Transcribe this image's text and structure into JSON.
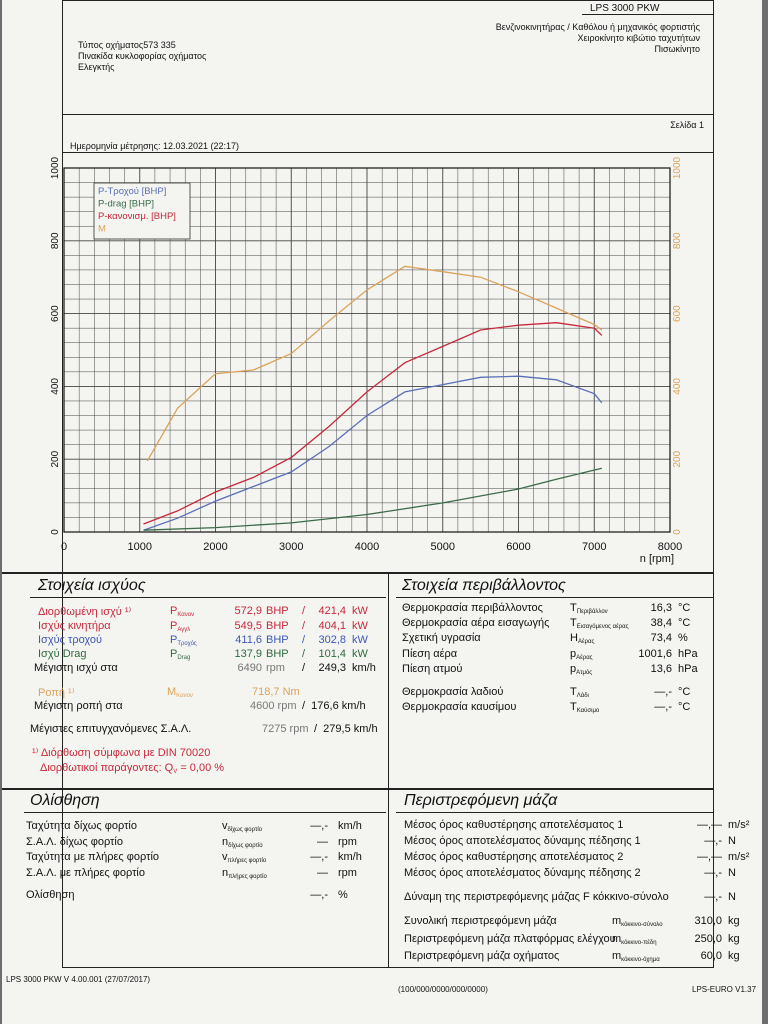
{
  "header": {
    "brand": "LPS 3000 PKW",
    "vehicle_type": "Τύπος οχήματος573 335",
    "plate": "Πινακίδα κυκλοφορίας οχήματος",
    "inspector": "Ελεγκτής",
    "fuel_line": "Βενζινοκινητήρας / Καθόλου ή μηχανικός φορτιστής",
    "gearbox_line": "Χειροκίνητο κιβώτιο ταχυτήτων",
    "drive_line": "Πισωκίνητο",
    "page": "Σελίδα 1",
    "measure_date": "Ημερομηνία μέτρησης: 12.03.2021 (22:17)"
  },
  "chart_data": {
    "type": "line",
    "xlabel": "n [rpm]",
    "xlim": [
      0,
      8000
    ],
    "ylim_left": [
      0,
      1000
    ],
    "ylim_right": [
      0,
      1000
    ],
    "x_ticks": [
      "0",
      "1000",
      "2000",
      "3000",
      "4000",
      "5000",
      "6000",
      "7000",
      "8000"
    ],
    "y_ticks_left": [
      "0",
      "200",
      "400",
      "600",
      "800",
      "1000"
    ],
    "y_ticks_right": [
      "0",
      "200",
      "400",
      "600",
      "800",
      "1000"
    ],
    "grid": true,
    "legend_position": "top-left",
    "series": [
      {
        "name": "P-Τροχού [BHP]",
        "color": "#5b6fb8",
        "points": [
          [
            1050,
            5
          ],
          [
            1500,
            38
          ],
          [
            2000,
            85
          ],
          [
            2500,
            125
          ],
          [
            3000,
            165
          ],
          [
            3500,
            235
          ],
          [
            4000,
            320
          ],
          [
            4500,
            385
          ],
          [
            5000,
            405
          ],
          [
            5500,
            425
          ],
          [
            6000,
            428
          ],
          [
            6500,
            418
          ],
          [
            7000,
            380
          ],
          [
            7100,
            355
          ]
        ]
      },
      {
        "name": "P-drag [BHP]",
        "color": "#3b6b48",
        "points": [
          [
            1050,
            5
          ],
          [
            2000,
            12
          ],
          [
            3000,
            25
          ],
          [
            4000,
            48
          ],
          [
            5000,
            80
          ],
          [
            6000,
            118
          ],
          [
            6500,
            145
          ],
          [
            7100,
            175
          ]
        ]
      },
      {
        "name": "P-κανονισμ. [BHP]",
        "color": "#c8283c",
        "points": [
          [
            1050,
            22
          ],
          [
            1500,
            58
          ],
          [
            2000,
            110
          ],
          [
            2500,
            150
          ],
          [
            3000,
            205
          ],
          [
            3500,
            290
          ],
          [
            4000,
            385
          ],
          [
            4500,
            465
          ],
          [
            5000,
            510
          ],
          [
            5500,
            555
          ],
          [
            6000,
            568
          ],
          [
            6500,
            575
          ],
          [
            7000,
            560
          ],
          [
            7100,
            540
          ]
        ]
      },
      {
        "name": "M",
        "color": "#dba35a",
        "points": [
          [
            1100,
            195
          ],
          [
            1500,
            340
          ],
          [
            2000,
            435
          ],
          [
            2500,
            445
          ],
          [
            3000,
            490
          ],
          [
            3500,
            580
          ],
          [
            4000,
            665
          ],
          [
            4500,
            730
          ],
          [
            5000,
            715
          ],
          [
            5500,
            700
          ],
          [
            6000,
            660
          ],
          [
            6500,
            615
          ],
          [
            7000,
            570
          ],
          [
            7100,
            555
          ]
        ]
      }
    ]
  },
  "power": {
    "title": "Στοιχεία ισχύος",
    "rows": [
      {
        "label": "Διορθωμένη ισχύ ¹⁾",
        "sym": "P",
        "sub": "Κανον",
        "v1": "572,9",
        "u1": "BHP",
        "v2": "421,4",
        "u2": "kW",
        "cls": "red"
      },
      {
        "label": "Ισχύς κινητήρα",
        "sym": "P",
        "sub": "Αγγλ",
        "v1": "549,5",
        "u1": "BHP",
        "v2": "404,1",
        "u2": "kW",
        "cls": "red"
      },
      {
        "label": "Ισχύς τροχού",
        "sym": "P",
        "sub": "Τροχός",
        "v1": "411,6",
        "u1": "BHP",
        "v2": "302,8",
        "u2": "kW",
        "cls": "blue"
      },
      {
        "label": "Ισχύ Drag",
        "sym": "P",
        "sub": "Drag",
        "v1": "137,9",
        "u1": "BHP",
        "v2": "101,4",
        "u2": "kW",
        "cls": "green"
      },
      {
        "label": "Μέγιστη ισχύ στα",
        "sym": "",
        "sub": "",
        "v1": "6490",
        "u1": "rpm",
        "v2": "249,3",
        "u2": "km/h",
        "cls": ""
      }
    ],
    "torque_label": "Ροπή ¹⁾",
    "torque_sym": "M",
    "torque_sub": "Κανον",
    "torque_value": "718,7",
    "torque_unit": "Nm",
    "max_torque_label": "Μέγιστη ροπή στα",
    "max_torque_rpm": "4600",
    "max_torque_rpm_unit": "rpm",
    "max_torque_speed": "176,6",
    "max_torque_speed_unit": "km/h",
    "max_rpm_label": "Μέγιστες επιτυγχανόμενες Σ.Α.Λ.",
    "max_rpm": "7275",
    "max_rpm_unit": "rpm",
    "max_rpm_speed": "279,5",
    "max_rpm_speed_unit": "km/h",
    "din_note": "¹⁾ Διόρθωση σύμφωνα με DIN 70020",
    "factor_label": "Διορθωτικοί παράγοντες: Q",
    "factor_sub": "V",
    "factor_value": " =   0,00 %"
  },
  "environment": {
    "title": "Στοιχεία περιβάλλοντος",
    "rows": [
      {
        "label": "Θερμοκρασία περιβάλλοντος",
        "sym": "T",
        "sub": "Περιβάλλον",
        "value": "16,3",
        "unit": "°C"
      },
      {
        "label": "Θερμοκρασία αέρα εισαγωγής",
        "sym": "T",
        "sub": "Εισαγόμενος αέρας",
        "value": "38,4",
        "unit": "°C"
      },
      {
        "label": "Σχετική υγρασία",
        "sym": "H",
        "sub": "Αέρας",
        "value": "73,4",
        "unit": "%"
      },
      {
        "label": "Πίεση αέρα",
        "sym": "p",
        "sub": "Αέρας",
        "value": "1001,6",
        "unit": "hPa"
      },
      {
        "label": "Πίεση ατμού",
        "sym": "p",
        "sub": "Ατμός",
        "value": "13,6",
        "unit": "hPa"
      },
      {
        "label": "Θερμοκρασία λαδιού",
        "sym": "T",
        "sub": "Λάδι",
        "value": "—,-",
        "unit": "°C"
      },
      {
        "label": "Θερμοκρασία καυσίμου",
        "sym": "T",
        "sub": "Καύσιμο",
        "value": "—,-",
        "unit": "°C"
      }
    ]
  },
  "slip": {
    "title": "Ολίσθηση",
    "rows": [
      {
        "label": "Ταχύτητα δίχως φορτίο",
        "sym": "v",
        "sub": "δίχως φορτίο",
        "value": "—,-",
        "unit": "km/h"
      },
      {
        "label": "Σ.Α.Λ. δίχως φορτίο",
        "sym": "n",
        "sub": "δίχως φορτίο",
        "value": "—",
        "unit": "rpm"
      },
      {
        "label": "Ταχύτητα με πλήρες φορτίο",
        "sym": "v",
        "sub": "πλήρες φορτίο",
        "value": "—,-",
        "unit": "km/h"
      },
      {
        "label": "Σ.Α.Λ. με πλήρες φορτίο",
        "sym": "n",
        "sub": "πλήρες φορτίο",
        "value": "—",
        "unit": "rpm"
      },
      {
        "label": "Ολίσθηση",
        "sym": "",
        "sub": "",
        "value": "—,-",
        "unit": "%"
      }
    ]
  },
  "mass": {
    "title": "Περιστρεφόμενη μάζα",
    "rows": [
      {
        "label": "Μέσος όρος καθυστέρησης αποτελέσματος 1",
        "value": "—,—",
        "unit": "m/s²"
      },
      {
        "label": "Μέσος όρος αποτελέσματος δύναμης πέδησης 1",
        "value": "—,-",
        "unit": "N"
      },
      {
        "label": "Μέσος όρος καθυστέρησης αποτελέσματος 2",
        "value": "—,—",
        "unit": "m/s²"
      },
      {
        "label": "Μέσος όρος αποτελέσματος δύναμης πέδησης 2",
        "value": "—,-",
        "unit": "N"
      },
      {
        "label": "Δύναμη της περιστρεφόμενης μάζας F κόκκινο-σύνολο",
        "value": "—,-",
        "unit": "N"
      },
      {
        "label": "Συνολική περιστρεφόμενη μάζα",
        "sym": "m",
        "sub": "κόκκινο-σύνολο",
        "value": "310,0",
        "unit": "kg"
      },
      {
        "label": "Περιστρεφόμενη μάζα πλατφόρμας ελέγχου",
        "sym": "m",
        "sub": "κόκκινο-πέδη",
        "value": "250,0",
        "unit": "kg"
      },
      {
        "label": "Περιστρεφόμενη μάζα οχήματος",
        "sym": "m",
        "sub": "κόκκινο-όχημα",
        "value": "60,0",
        "unit": "kg"
      }
    ]
  },
  "footer": {
    "version": "LPS 3000 PKW V 4.00.001 (27/07/2017)",
    "code": "(100/000/0000/000/0000)",
    "euro": "LPS-EURO V1.37"
  }
}
